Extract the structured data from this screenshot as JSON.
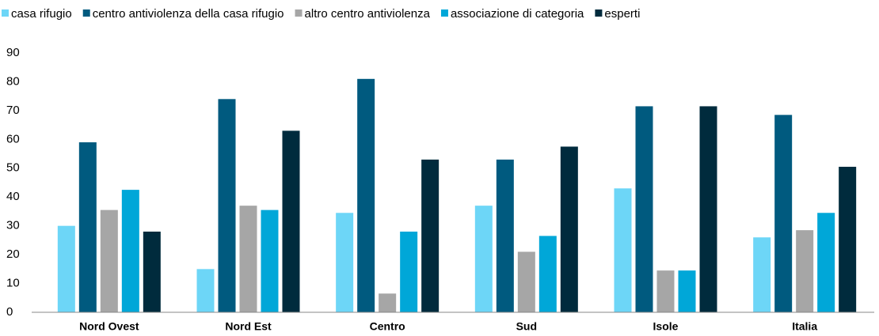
{
  "chart_data": {
    "type": "bar",
    "categories": [
      "Nord Ovest",
      "Nord Est",
      "Centro",
      "Sud",
      "Isole",
      "Italia"
    ],
    "series": [
      {
        "name": "casa rifugio",
        "color": "#6dd6f7",
        "values": [
          30,
          15,
          34.5,
          37,
          43,
          26
        ]
      },
      {
        "name": "centro antiviolenza della casa rifugio",
        "color": "#005a7f",
        "values": [
          59,
          74,
          81,
          53,
          71.5,
          68.5
        ]
      },
      {
        "name": "altro centro antiviolenza",
        "color": "#a6a6a6",
        "values": [
          35.5,
          37,
          6.5,
          21,
          14.5,
          28.5
        ]
      },
      {
        "name": "associazione  di categoria",
        "color": "#00a7d8",
        "values": [
          42.5,
          35.5,
          28,
          26.5,
          14.5,
          34.5
        ]
      },
      {
        "name": "esperti",
        "color": "#002b3d",
        "values": [
          28,
          63,
          53,
          57.5,
          71.5,
          50.5
        ]
      }
    ],
    "ylim": [
      0,
      90
    ],
    "yticks": [
      0,
      10,
      20,
      30,
      40,
      50,
      60,
      70,
      80,
      90
    ],
    "grid": false,
    "legend": "top"
  }
}
